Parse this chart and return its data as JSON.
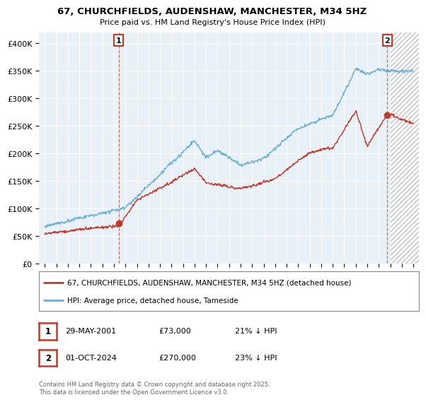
{
  "title": "67, CHURCHFIELDS, AUDENSHAW, MANCHESTER, M34 5HZ",
  "subtitle": "Price paid vs. HM Land Registry's House Price Index (HPI)",
  "legend_line1": "67, CHURCHFIELDS, AUDENSHAW, MANCHESTER, M34 5HZ (detached house)",
  "legend_line2": "HPI: Average price, detached house, Tameside",
  "footnote": "Contains HM Land Registry data © Crown copyright and database right 2025.\nThis data is licensed under the Open Government Licence v3.0.",
  "annotation1_label": "1",
  "annotation1_date": "29-MAY-2001",
  "annotation1_price": "£73,000",
  "annotation1_hpi": "21% ↓ HPI",
  "annotation1_year": 2001.41,
  "annotation1_value": 73000,
  "annotation2_label": "2",
  "annotation2_date": "01-OCT-2024",
  "annotation2_price": "£270,000",
  "annotation2_hpi": "23% ↓ HPI",
  "annotation2_year": 2024.75,
  "annotation2_value": 270000,
  "hpi_color": "#6baed6",
  "price_color": "#c0392b",
  "background_color": "#ffffff",
  "chart_bg": "#e8f0f8",
  "grid_color": "#ffffff",
  "hatch_start": 2025.0,
  "ylim": [
    0,
    420000
  ],
  "xlim": [
    1994.5,
    2027.5
  ],
  "yticks": [
    0,
    50000,
    100000,
    150000,
    200000,
    250000,
    300000,
    350000,
    400000
  ],
  "ytick_labels": [
    "£0",
    "£50K",
    "£100K",
    "£150K",
    "£200K",
    "£250K",
    "£300K",
    "£350K",
    "£400K"
  ]
}
